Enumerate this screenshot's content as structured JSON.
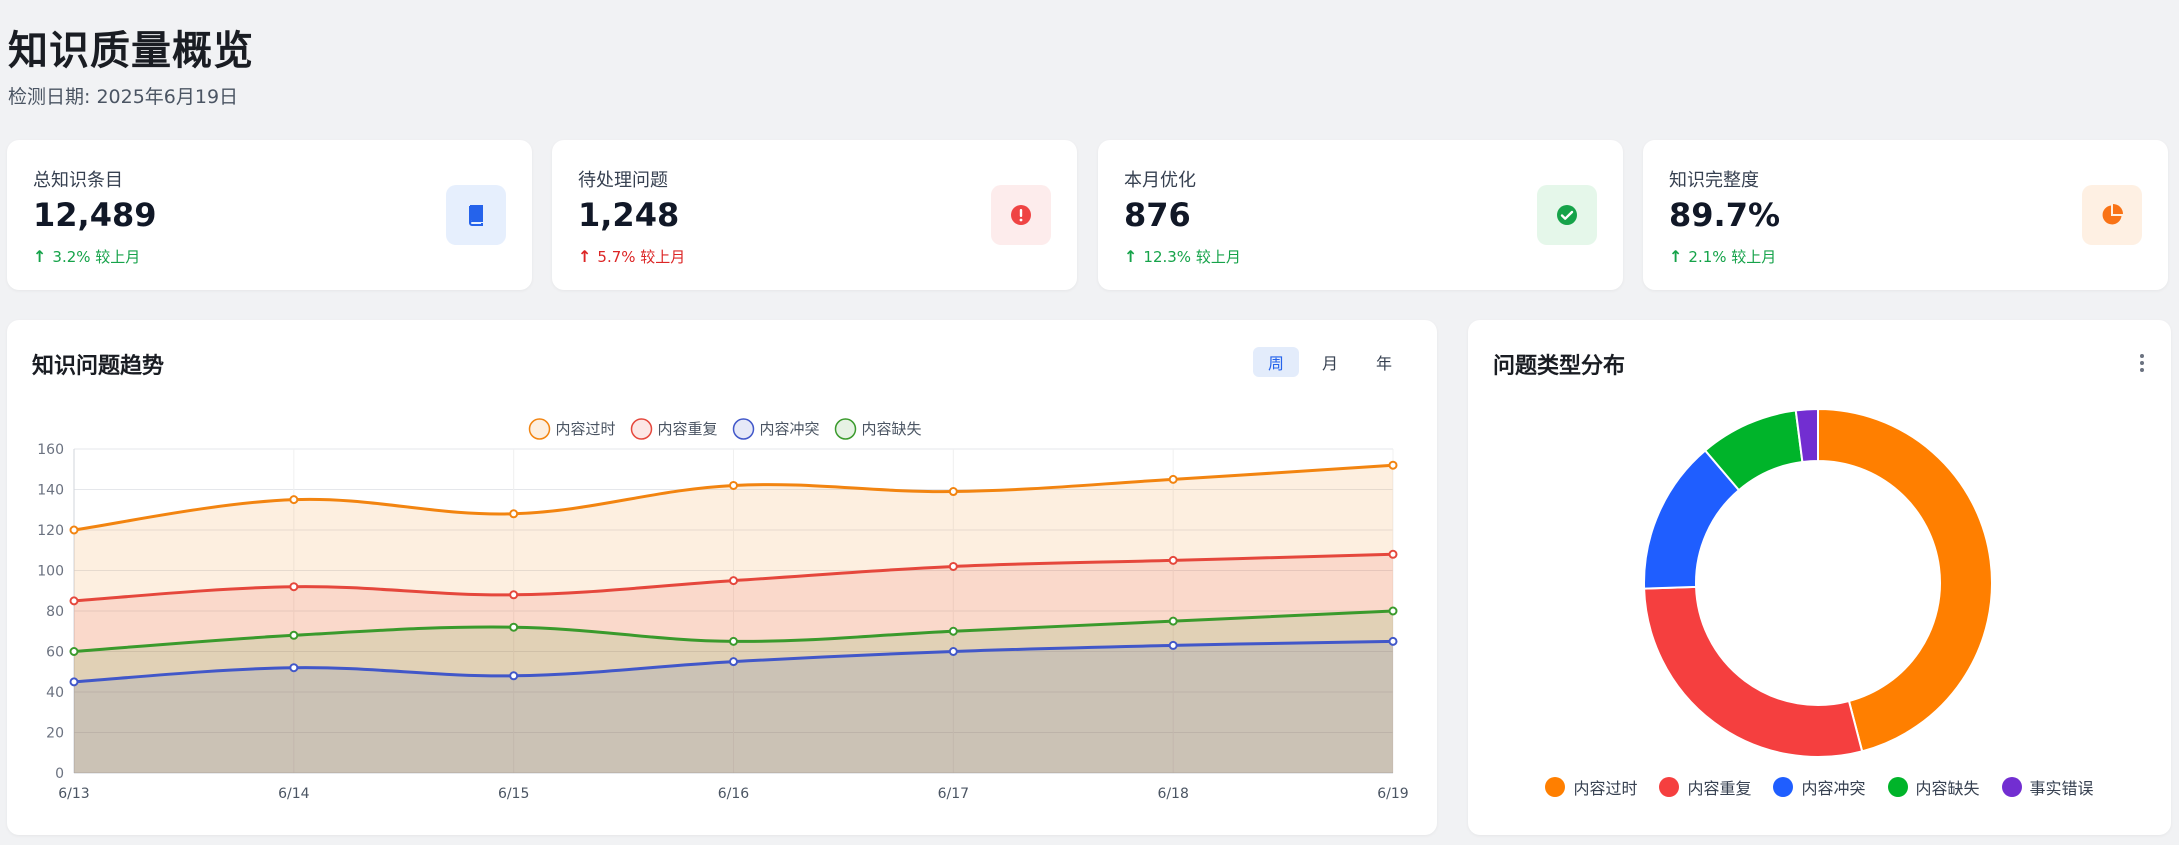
{
  "header": {
    "title": "知识质量概览",
    "subtitle": "检测日期: 2025年6月19日"
  },
  "stats": [
    {
      "label": "总知识条目",
      "value": "12,489",
      "change": "3.2% 较上月",
      "direction": "up",
      "change_color": "#16a34a",
      "icon": "book-icon",
      "icon_color": "#2563eb",
      "icon_bg": "#e6effd"
    },
    {
      "label": "待处理问题",
      "value": "1,248",
      "change": "5.7% 较上月",
      "direction": "up",
      "change_color": "#dc2626",
      "icon": "exclamation-icon",
      "icon_color": "#ef4444",
      "icon_bg": "#fdecec"
    },
    {
      "label": "本月优化",
      "value": "876",
      "change": "12.3% 较上月",
      "direction": "up",
      "change_color": "#16a34a",
      "icon": "check-circle-icon",
      "icon_color": "#16a34a",
      "icon_bg": "#e5f7ea"
    },
    {
      "label": "知识完整度",
      "value": "89.7%",
      "change": "2.1% 较上月",
      "direction": "up",
      "change_color": "#16a34a",
      "icon": "pie-chart-icon",
      "icon_color": "#f97316",
      "icon_bg": "#fef0e3"
    }
  ],
  "trend_panel": {
    "title": "知识问题趋势",
    "tabs": [
      {
        "label": "周",
        "active": true
      },
      {
        "label": "月",
        "active": false
      },
      {
        "label": "年",
        "active": false
      }
    ]
  },
  "pie_panel": {
    "title": "问题类型分布",
    "menu_icon": "more-vertical-icon"
  },
  "chart_data": [
    {
      "type": "area",
      "categories": [
        "6/13",
        "6/14",
        "6/15",
        "6/16",
        "6/17",
        "6/18",
        "6/19"
      ],
      "ylim": [
        0,
        160
      ],
      "yticks": [
        0,
        20,
        40,
        60,
        80,
        100,
        120,
        140,
        160
      ],
      "grid": true,
      "legend": "top-center",
      "series": [
        {
          "name": "内容过时",
          "color": "#f28410",
          "values": [
            120,
            135,
            128,
            142,
            139,
            145,
            152
          ]
        },
        {
          "name": "内容重复",
          "color": "#e5473c",
          "values": [
            85,
            92,
            88,
            95,
            102,
            105,
            108
          ]
        },
        {
          "name": "内容冲突",
          "color": "#4157c9",
          "values": [
            45,
            52,
            48,
            55,
            60,
            63,
            65
          ]
        },
        {
          "name": "内容缺失",
          "color": "#3a9a2c",
          "values": [
            60,
            68,
            72,
            65,
            70,
            75,
            80
          ]
        }
      ]
    },
    {
      "type": "pie",
      "legend": "bottom",
      "categories": [
        "内容过时",
        "内容重复",
        "内容冲突",
        "内容缺失",
        "事实错误"
      ],
      "values": [
        45,
        28,
        14,
        9,
        2
      ],
      "colors": [
        "#ff7f00",
        "#f53f3f",
        "#1f5eff",
        "#00b42a",
        "#722ed1"
      ]
    }
  ]
}
